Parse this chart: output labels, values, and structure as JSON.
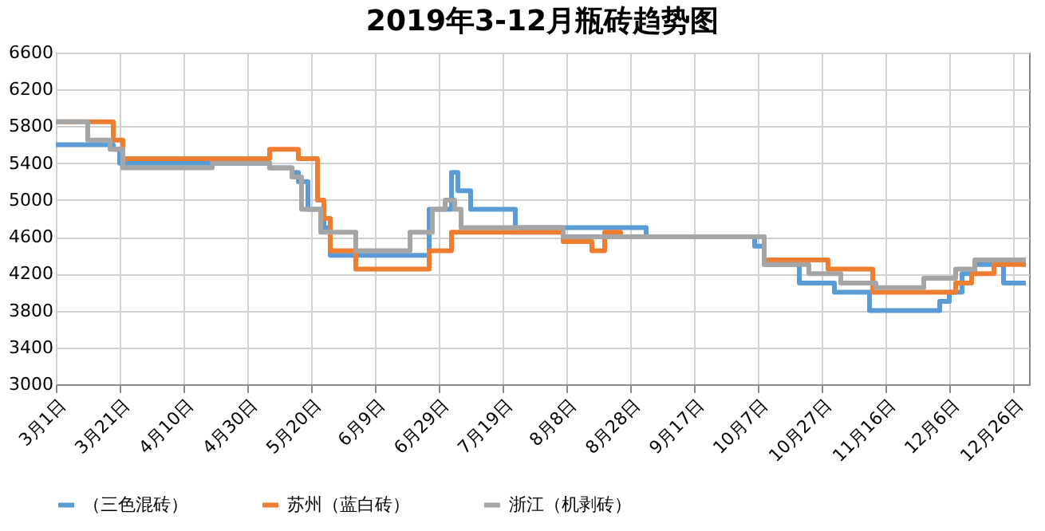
{
  "chart_data": {
    "type": "step",
    "title": "2019年3-12月瓶砖趋势图",
    "xlim": [
      "2019-03-01",
      "2019-12-31"
    ],
    "xticks": [
      {
        "value": "2019-03-01",
        "label": "3月1日"
      },
      {
        "value": "2019-03-21",
        "label": "3月21日"
      },
      {
        "value": "2019-04-10",
        "label": "4月10日"
      },
      {
        "value": "2019-04-30",
        "label": "4月30日"
      },
      {
        "value": "2019-05-20",
        "label": "5月20日"
      },
      {
        "value": "2019-06-09",
        "label": "6月9日"
      },
      {
        "value": "2019-06-29",
        "label": "6月29日"
      },
      {
        "value": "2019-07-19",
        "label": "7月19日"
      },
      {
        "value": "2019-08-08",
        "label": "8月8日"
      },
      {
        "value": "2019-08-28",
        "label": "8月28日"
      },
      {
        "value": "2019-09-17",
        "label": "9月17日"
      },
      {
        "value": "2019-10-07",
        "label": "10月7日"
      },
      {
        "value": "2019-10-27",
        "label": "10月27日"
      },
      {
        "value": "2019-11-16",
        "label": "11月16日"
      },
      {
        "value": "2019-12-06",
        "label": "12月6日"
      },
      {
        "value": "2019-12-26",
        "label": "12月26日"
      }
    ],
    "ylim": [
      3000,
      6600
    ],
    "yticks": [
      3000,
      3400,
      3800,
      4200,
      4600,
      5000,
      5400,
      5800,
      6200,
      6600
    ],
    "grid": true,
    "legend": "bottom",
    "line_style": "solid",
    "series": [
      {
        "name": "（三色混砖）",
        "color": "#5b9bd5",
        "x": [
          "2019-03-01",
          "2019-03-19",
          "2019-03-21",
          "2019-05-07",
          "2019-05-14",
          "2019-05-16",
          "2019-05-19",
          "2019-05-24",
          "2019-05-26",
          "2019-06-26",
          "2019-07-03",
          "2019-07-05",
          "2019-07-09",
          "2019-07-23",
          "2019-09-02",
          "2019-10-06",
          "2019-10-09",
          "2019-10-20",
          "2019-10-31",
          "2019-11-11",
          "2019-12-03",
          "2019-12-06",
          "2019-12-10",
          "2019-12-14",
          "2019-12-23",
          "2019-12-30"
        ],
        "values": [
          5600,
          5550,
          5400,
          5350,
          5300,
          5200,
          4900,
          4700,
          4400,
          4900,
          5300,
          5100,
          4900,
          4700,
          4600,
          4500,
          4300,
          4100,
          4000,
          3800,
          3900,
          4000,
          4200,
          4300,
          4100,
          4100
        ]
      },
      {
        "name": "苏州（蓝白砖）",
        "color": "#ed7d31",
        "x": [
          "2019-03-01",
          "2019-03-19",
          "2019-03-22",
          "2019-05-07",
          "2019-05-16",
          "2019-05-22",
          "2019-05-24",
          "2019-05-26",
          "2019-06-03",
          "2019-06-26",
          "2019-07-03",
          "2019-08-07",
          "2019-08-16",
          "2019-08-20",
          "2019-08-25",
          "2019-10-09",
          "2019-10-29",
          "2019-11-12",
          "2019-12-08",
          "2019-12-13",
          "2019-12-20",
          "2019-12-30"
        ],
        "values": [
          5850,
          5650,
          5450,
          5550,
          5450,
          5000,
          4800,
          4450,
          4250,
          4450,
          4650,
          4550,
          4450,
          4650,
          4600,
          4350,
          4250,
          4000,
          4100,
          4200,
          4300,
          4300
        ]
      },
      {
        "name": "浙江（机剥砖）",
        "color": "#a5a5a5",
        "x": [
          "2019-03-01",
          "2019-03-11",
          "2019-03-18",
          "2019-03-22",
          "2019-04-19",
          "2019-05-07",
          "2019-05-14",
          "2019-05-17",
          "2019-05-23",
          "2019-06-03",
          "2019-06-20",
          "2019-06-27",
          "2019-07-01",
          "2019-07-04",
          "2019-07-06",
          "2019-08-07",
          "2019-10-09",
          "2019-10-23",
          "2019-11-02",
          "2019-11-13",
          "2019-11-28",
          "2019-12-08",
          "2019-12-14",
          "2019-12-30"
        ],
        "values": [
          5850,
          5650,
          5550,
          5350,
          5400,
          5350,
          5250,
          4900,
          4650,
          4450,
          4650,
          4900,
          5000,
          4900,
          4700,
          4600,
          4300,
          4200,
          4100,
          4050,
          4150,
          4250,
          4350,
          4350
        ]
      }
    ]
  }
}
